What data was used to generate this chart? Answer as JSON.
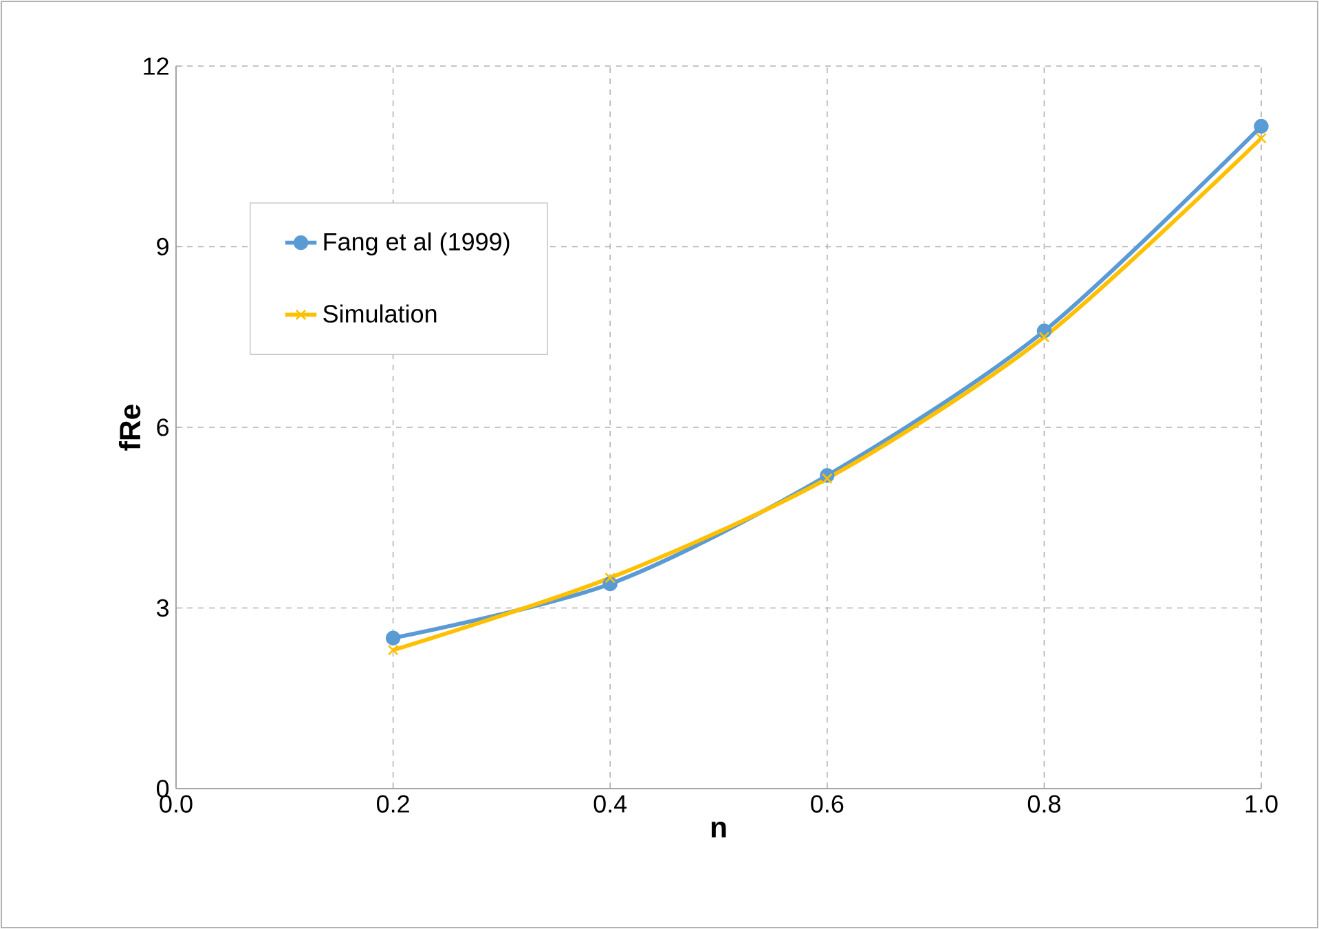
{
  "chart_data": {
    "type": "line",
    "xlabel": "n",
    "ylabel": "fRe",
    "x": [
      0.2,
      0.4,
      0.6,
      0.8,
      1.0
    ],
    "series": [
      {
        "name": "Fang et al (1999)",
        "color": "#5b9bd5",
        "marker": "circle",
        "values": [
          2.5,
          3.4,
          5.2,
          7.6,
          11.0
        ]
      },
      {
        "name": "Simulation",
        "color": "#ffc000",
        "marker": "cross",
        "values": [
          2.3,
          3.5,
          5.15,
          7.5,
          10.8
        ]
      }
    ],
    "xlim": [
      0,
      1
    ],
    "xticks": [
      {
        "value": 0,
        "label": "0.0"
      },
      0.2,
      0.4,
      0.6,
      0.8,
      {
        "value": 1,
        "label": "1.0"
      }
    ],
    "ylim": [
      0,
      12
    ],
    "yticks": [
      0,
      3,
      6,
      9,
      12
    ],
    "grid": true,
    "legend": "top left"
  }
}
